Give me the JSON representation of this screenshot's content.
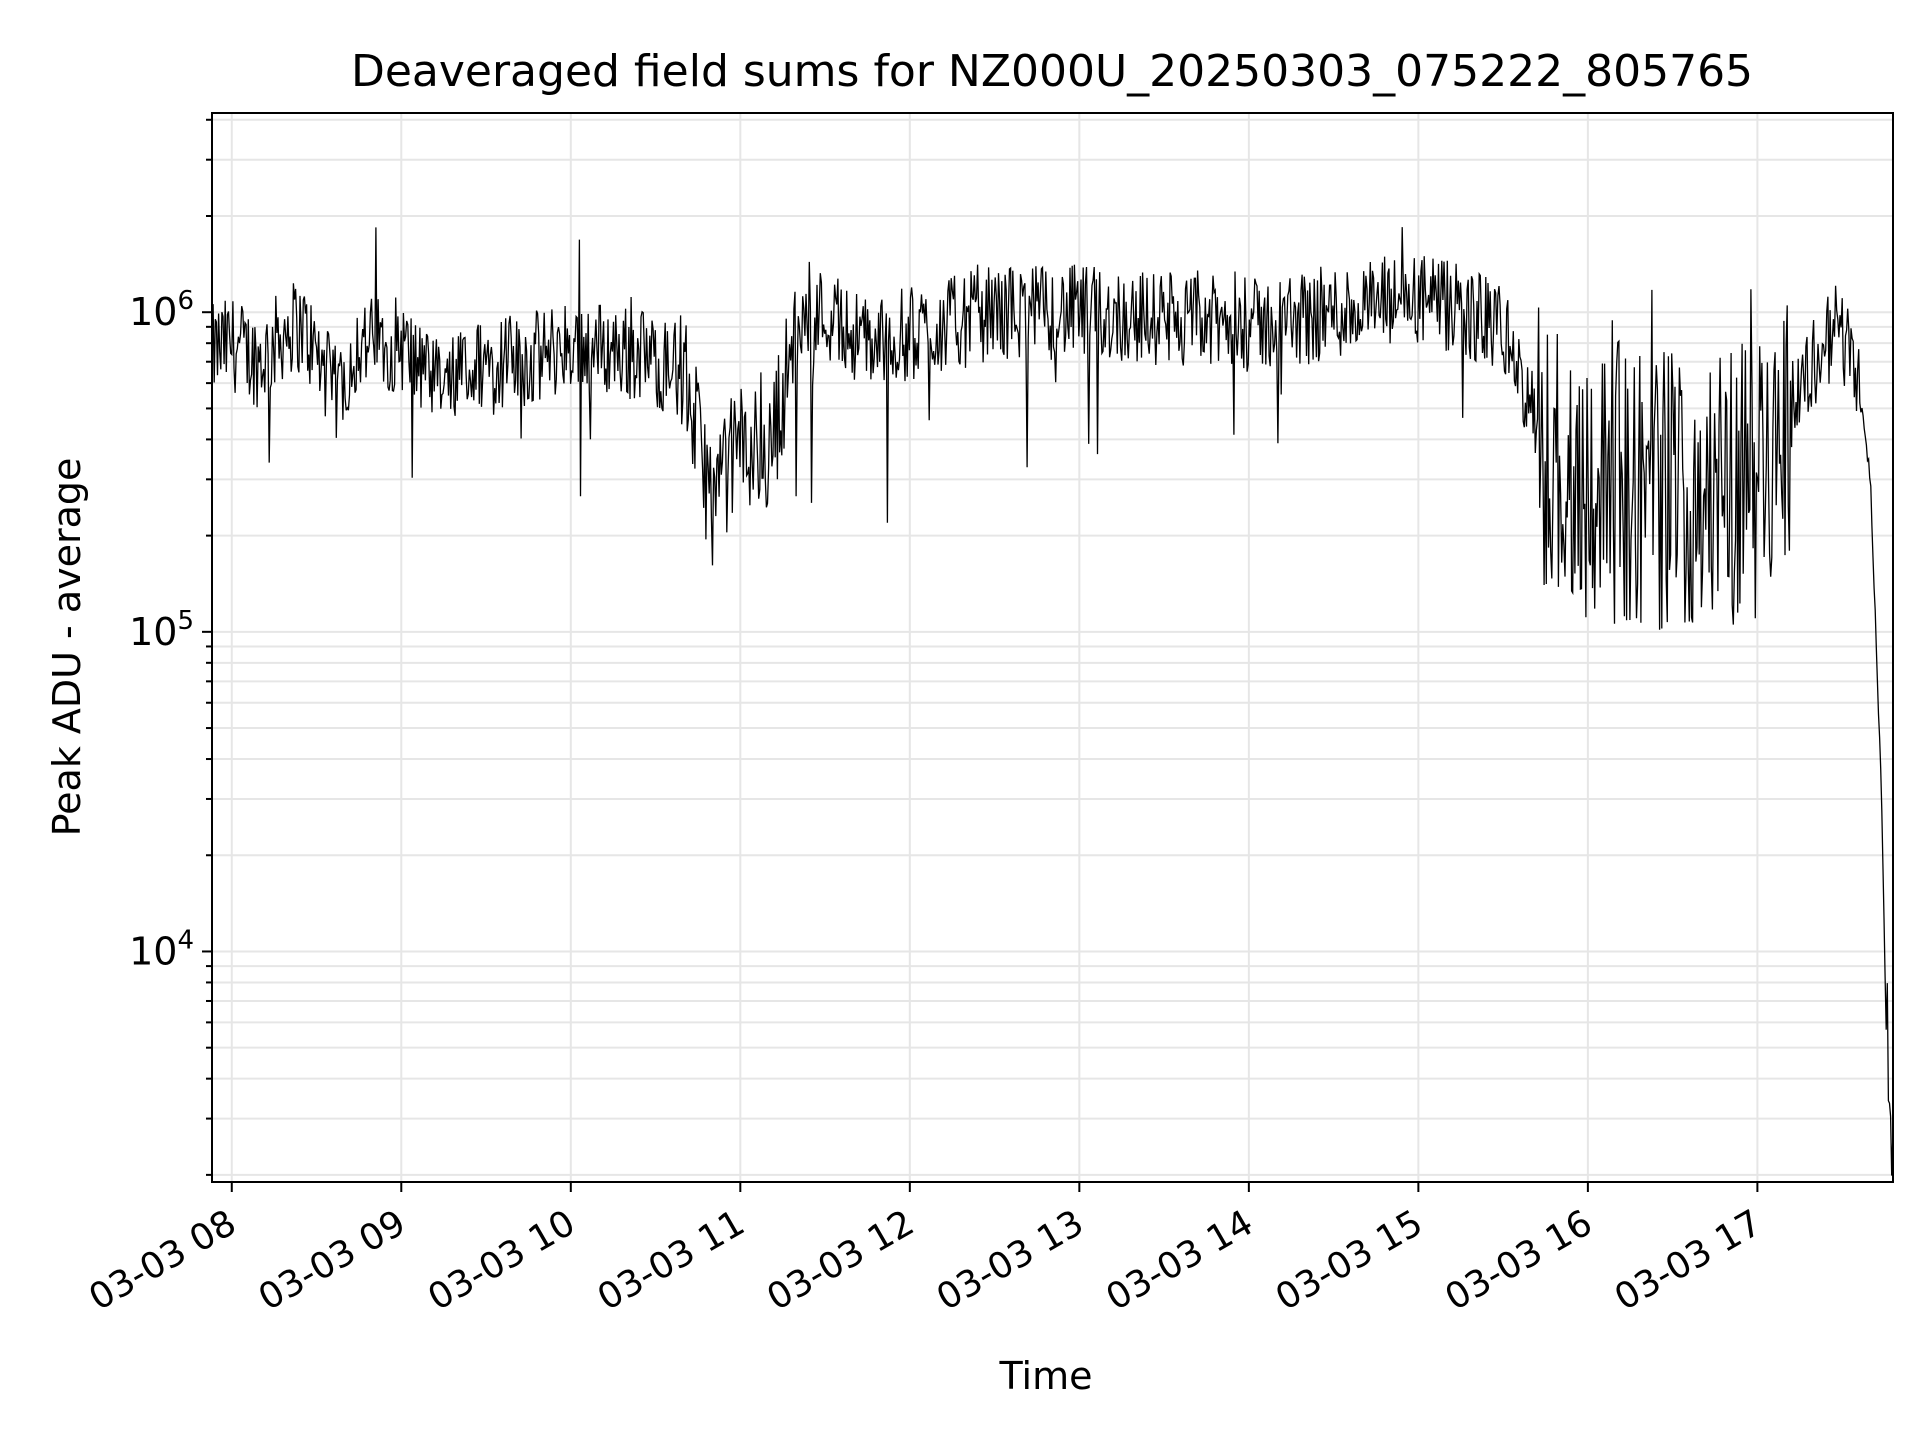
{
  "chart_data": {
    "type": "line",
    "title": "Deaveraged field sums for NZ000U_20250303_075222_805765",
    "xlabel": "Time",
    "ylabel": "Peak ADU - average",
    "yscale": "log",
    "ylim": [
      1900,
      4200000
    ],
    "xlim": [
      "2025-03-03 07:53",
      "2025-03-03 17:48"
    ],
    "grid": true,
    "line_color": "#000000",
    "grid_color": "#e6e6e6",
    "x_ticks": [
      {
        "value": "2025-03-03 08:00",
        "label": "03-03 08"
      },
      {
        "value": "2025-03-03 09:00",
        "label": "03-03 09"
      },
      {
        "value": "2025-03-03 10:00",
        "label": "03-03 10"
      },
      {
        "value": "2025-03-03 11:00",
        "label": "03-03 11"
      },
      {
        "value": "2025-03-03 12:00",
        "label": "03-03 12"
      },
      {
        "value": "2025-03-03 13:00",
        "label": "03-03 13"
      },
      {
        "value": "2025-03-03 14:00",
        "label": "03-03 14"
      },
      {
        "value": "2025-03-03 15:00",
        "label": "03-03 15"
      },
      {
        "value": "2025-03-03 16:00",
        "label": "03-03 16"
      },
      {
        "value": "2025-03-03 17:00",
        "label": "03-03 17"
      }
    ],
    "y_ticks": [
      {
        "value": 10000,
        "base": "10",
        "exp": "4"
      },
      {
        "value": 100000,
        "base": "10",
        "exp": "5"
      },
      {
        "value": 1000000,
        "base": "10",
        "exp": "6"
      }
    ],
    "series": [
      {
        "x": [
          "2025-03-03 07:53",
          "2025-03-03 08:00",
          "2025-03-03 08:10",
          "2025-03-03 08:20",
          "2025-03-03 08:25",
          "2025-03-03 08:37",
          "2025-03-03 08:45",
          "2025-03-03 09:00",
          "2025-03-03 09:10",
          "2025-03-03 09:15",
          "2025-03-03 09:30",
          "2025-03-03 09:45",
          "2025-03-03 10:00",
          "2025-03-03 10:20",
          "2025-03-03 10:40",
          "2025-03-03 10:50",
          "2025-03-03 11:00",
          "2025-03-03 11:10",
          "2025-03-03 11:20",
          "2025-03-03 11:30",
          "2025-03-03 11:45",
          "2025-03-03 12:00",
          "2025-03-03 12:30",
          "2025-03-03 13:00",
          "2025-03-03 13:30",
          "2025-03-03 14:00",
          "2025-03-03 14:30",
          "2025-03-03 15:00",
          "2025-03-03 15:30",
          "2025-03-03 15:45",
          "2025-03-03 16:00",
          "2025-03-03 16:30",
          "2025-03-03 17:00",
          "2025-03-03 17:20",
          "2025-03-03 17:30",
          "2025-03-03 17:35",
          "2025-03-03 17:40",
          "2025-03-03 17:44",
          "2025-03-03 17:46",
          "2025-03-03 17:48"
        ],
        "y": [
          750000,
          800000,
          700000,
          900000,
          900000,
          550000,
          800000,
          800000,
          600000,
          580000,
          700000,
          700000,
          800000,
          750000,
          650000,
          250000,
          400000,
          350000,
          900000,
          1000000,
          800000,
          850000,
          1000000,
          1000000,
          950000,
          900000,
          1000000,
          1100000,
          900000,
          350000,
          300000,
          280000,
          300000,
          700000,
          950000,
          700000,
          300000,
          30000,
          3800,
          2500
        ]
      }
    ]
  }
}
